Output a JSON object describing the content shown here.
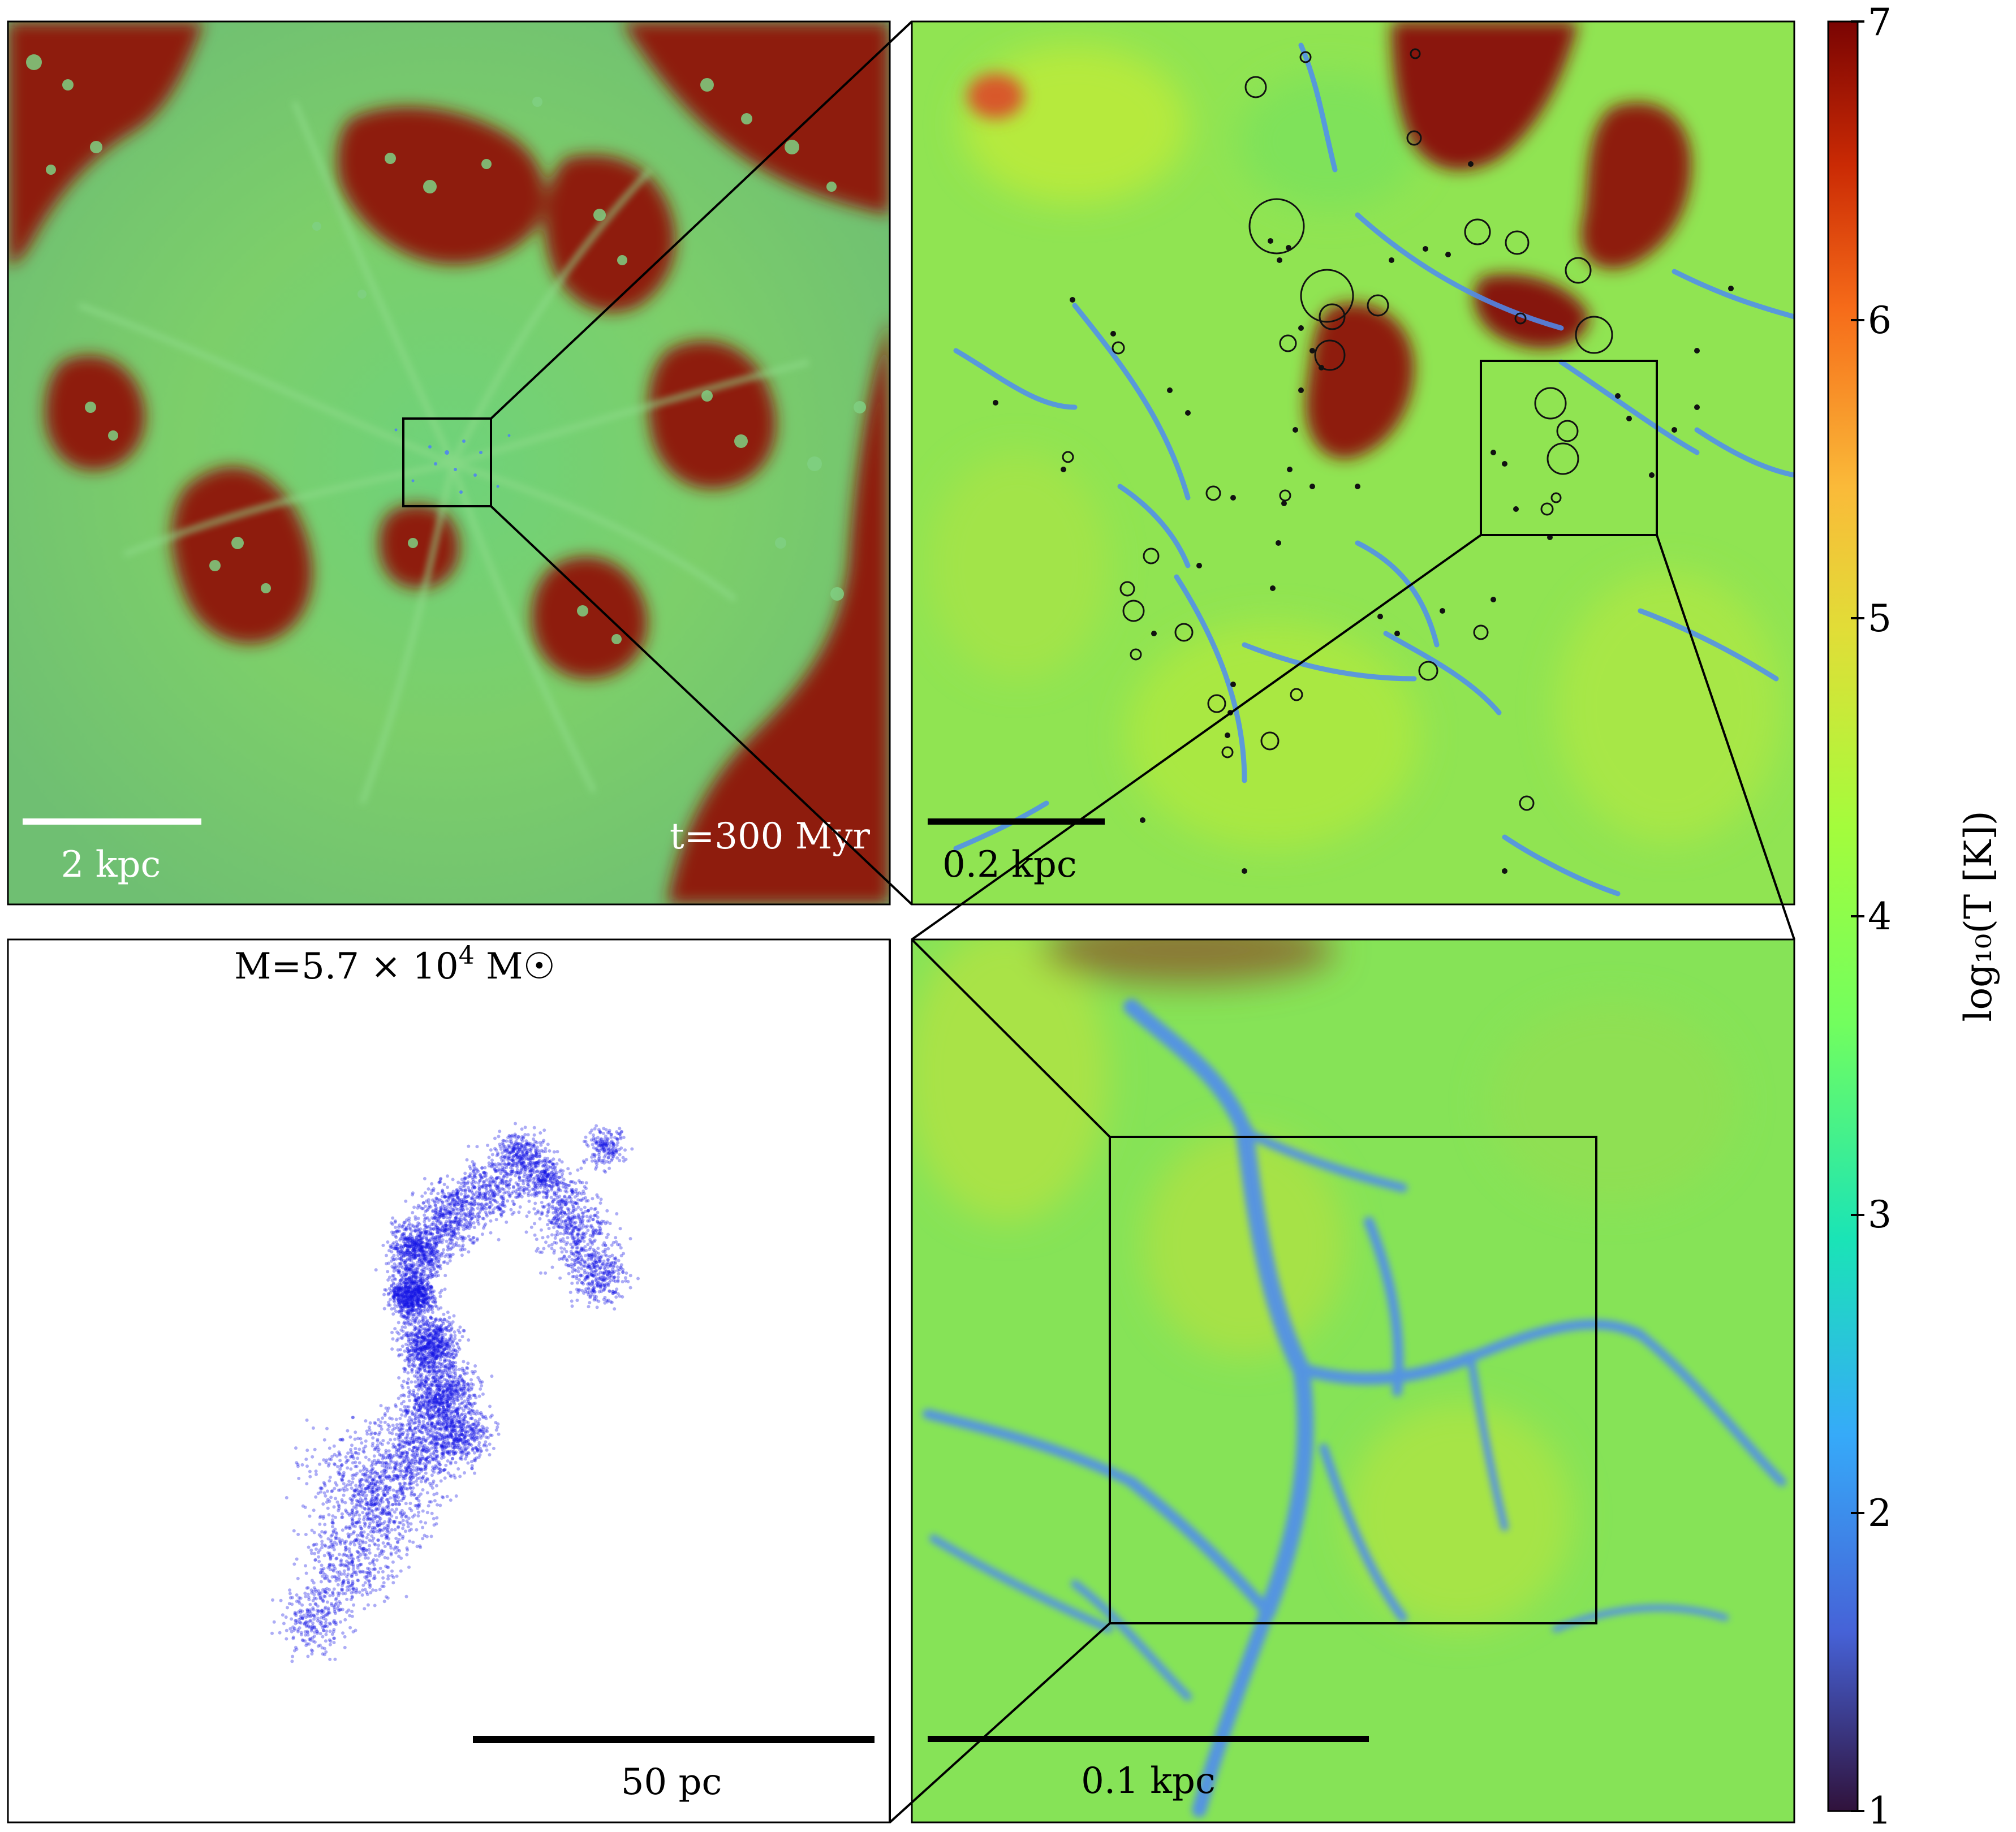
{
  "panels": {
    "galaxy": {
      "scale_label": "2 kpc",
      "time_label": "t=300 Myr"
    },
    "zoom1": {
      "scale_label": "0.2 kpc"
    },
    "zoom2": {
      "scale_label": "0.1 kpc"
    },
    "cloud": {
      "mass_label": "M=5.7 × 10",
      "mass_exponent": "4",
      "mass_unit": " M☉",
      "scale_label": "50 pc",
      "point_color": "#1414e6"
    }
  },
  "colorbar": {
    "label": "log₁₀(T [K])",
    "ticks": [
      "1",
      "2",
      "3",
      "4",
      "5",
      "6",
      "7"
    ],
    "colormap": [
      "#30123b",
      "#4662d7",
      "#36aaf9",
      "#1ae4b6",
      "#72fe5e",
      "#c8ef34",
      "#faba39",
      "#f66b19",
      "#ca2a04",
      "#7a0403"
    ]
  },
  "palette": {
    "hot_gas": "#8a1a08",
    "warm_gas": "#76d062",
    "cold_gas": "#4a8af0",
    "frame": "#000000"
  }
}
